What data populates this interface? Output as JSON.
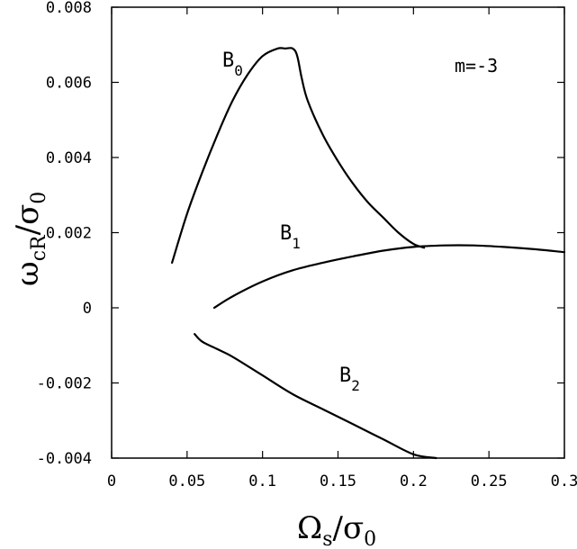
{
  "chart_data": {
    "type": "line",
    "title": "",
    "xlabel": {
      "main": "Ω",
      "sub": "s",
      "sep": "/σ",
      "sub2": "0"
    },
    "ylabel": {
      "main": "ω",
      "sub": "cR",
      "sep": "/σ",
      "sub2": "0"
    },
    "xlim": [
      0,
      0.3
    ],
    "ylim": [
      -0.004,
      0.008
    ],
    "x_ticks": [
      0,
      0.05,
      0.1,
      0.15,
      0.2,
      0.25,
      0.3
    ],
    "x_tick_labels": [
      "0",
      "0.05",
      "0.1",
      "0.15",
      "0.2",
      "0.25",
      "0.3"
    ],
    "y_ticks": [
      -0.004,
      -0.002,
      0,
      0.002,
      0.004,
      0.006,
      0.008
    ],
    "y_tick_labels": [
      "-0.004",
      "-0.002",
      "0",
      "0.002",
      "0.004",
      "0.006",
      "0.008"
    ],
    "annotation": "m=-3",
    "grid": false,
    "series": [
      {
        "name": "B0",
        "label_main": "B",
        "label_sub": "0",
        "x": [
          0.04,
          0.05,
          0.06,
          0.07,
          0.08,
          0.09,
          0.1,
          0.11,
          0.115,
          0.12,
          0.123,
          0.126,
          0.13,
          0.14,
          0.15,
          0.16,
          0.17,
          0.18,
          0.19,
          0.2,
          0.207
        ],
        "y": [
          0.0012,
          0.0025,
          0.0036,
          0.0046,
          0.0055,
          0.0062,
          0.0067,
          0.0069,
          0.0069,
          0.0069,
          0.0067,
          0.0061,
          0.0055,
          0.0046,
          0.0039,
          0.0033,
          0.0028,
          0.0024,
          0.002,
          0.0017,
          0.0016
        ]
      },
      {
        "name": "B1",
        "label_main": "B",
        "label_sub": "1",
        "x": [
          0.068,
          0.08,
          0.1,
          0.12,
          0.14,
          0.16,
          0.18,
          0.2,
          0.22,
          0.24,
          0.26,
          0.28,
          0.3
        ],
        "y": [
          0.0,
          0.0003,
          0.0007,
          0.001,
          0.0012,
          0.00137,
          0.00152,
          0.00162,
          0.00166,
          0.00166,
          0.00162,
          0.00156,
          0.00148
        ]
      },
      {
        "name": "B2",
        "label_main": "B",
        "label_sub": "2",
        "x": [
          0.055,
          0.06,
          0.07,
          0.08,
          0.1,
          0.12,
          0.14,
          0.16,
          0.18,
          0.2,
          0.215
        ],
        "y": [
          -0.0007,
          -0.0009,
          -0.0011,
          -0.0013,
          -0.0018,
          -0.0023,
          -0.0027,
          -0.0031,
          -0.0035,
          -0.0039,
          -0.004
        ]
      }
    ]
  }
}
